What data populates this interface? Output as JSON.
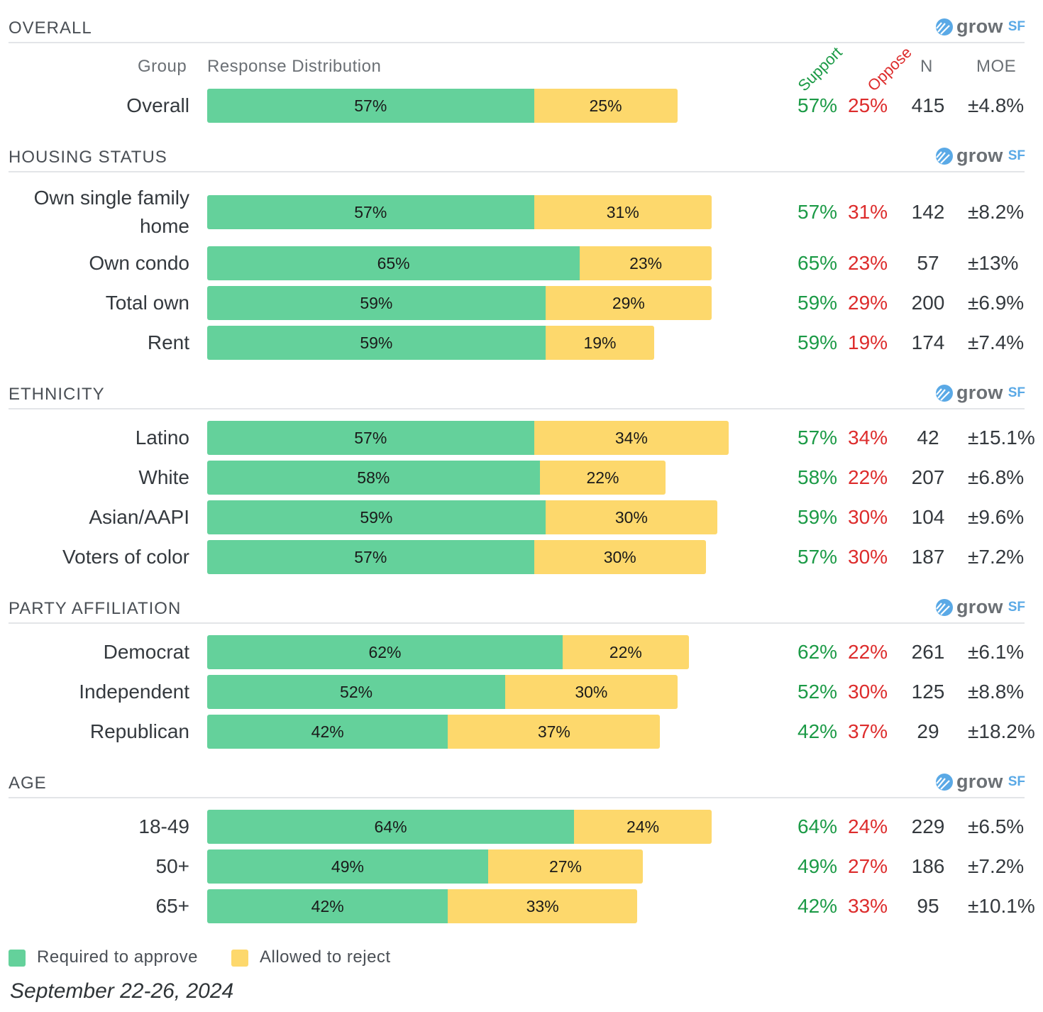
{
  "colors": {
    "support": "#64d19b",
    "oppose": "#fdd86c",
    "support_text": "#1b9a46",
    "oppose_text": "#dd2c2c"
  },
  "headers": {
    "group": "Group",
    "distribution": "Response Distribution",
    "support": "Support",
    "oppose": "Oppose",
    "n": "N",
    "moe": "MOE"
  },
  "logo": {
    "word": "grow",
    "suffix": "SF"
  },
  "legend": {
    "support": "Required to approve",
    "oppose": "Allowed to reject"
  },
  "date": "September 22-26, 2024",
  "chart_data": {
    "type": "bar",
    "orientation": "horizontal-stacked",
    "scale_max_percent": 100,
    "series": [
      {
        "name": "Required to approve",
        "color": "#64d19b"
      },
      {
        "name": "Allowed to reject",
        "color": "#fdd86c"
      }
    ],
    "sections": [
      {
        "title": "OVERALL",
        "rows": [
          {
            "label": "Overall",
            "support": 57,
            "oppose": 25,
            "n": "415",
            "moe": "±4.8%"
          }
        ]
      },
      {
        "title": "HOUSING STATUS",
        "rows": [
          {
            "label": "Own single family home",
            "support": 57,
            "oppose": 31,
            "n": "142",
            "moe": "±8.2%"
          },
          {
            "label": "Own condo",
            "support": 65,
            "oppose": 23,
            "n": "57",
            "moe": "±13%"
          },
          {
            "label": "Total own",
            "support": 59,
            "oppose": 29,
            "n": "200",
            "moe": "±6.9%"
          },
          {
            "label": "Rent",
            "support": 59,
            "oppose": 19,
            "n": "174",
            "moe": "±7.4%"
          }
        ]
      },
      {
        "title": "ETHNICITY",
        "rows": [
          {
            "label": "Latino",
            "support": 57,
            "oppose": 34,
            "n": "42",
            "moe": "±15.1%"
          },
          {
            "label": "White",
            "support": 58,
            "oppose": 22,
            "n": "207",
            "moe": "±6.8%"
          },
          {
            "label": "Asian/AAPI",
            "support": 59,
            "oppose": 30,
            "n": "104",
            "moe": "±9.6%"
          },
          {
            "label": "Voters of color",
            "support": 57,
            "oppose": 30,
            "n": "187",
            "moe": "±7.2%"
          }
        ]
      },
      {
        "title": "PARTY AFFILIATION",
        "rows": [
          {
            "label": "Democrat",
            "support": 62,
            "oppose": 22,
            "n": "261",
            "moe": "±6.1%"
          },
          {
            "label": "Independent",
            "support": 52,
            "oppose": 30,
            "n": "125",
            "moe": "±8.8%"
          },
          {
            "label": "Republican",
            "support": 42,
            "oppose": 37,
            "n": "29",
            "moe": "±18.2%"
          }
        ]
      },
      {
        "title": "AGE",
        "rows": [
          {
            "label": "18-49",
            "support": 64,
            "oppose": 24,
            "n": "229",
            "moe": "±6.5%"
          },
          {
            "label": "50+",
            "support": 49,
            "oppose": 27,
            "n": "186",
            "moe": "±7.2%"
          },
          {
            "label": "65+",
            "support": 42,
            "oppose": 33,
            "n": "95",
            "moe": "±10.1%"
          }
        ]
      }
    ]
  }
}
